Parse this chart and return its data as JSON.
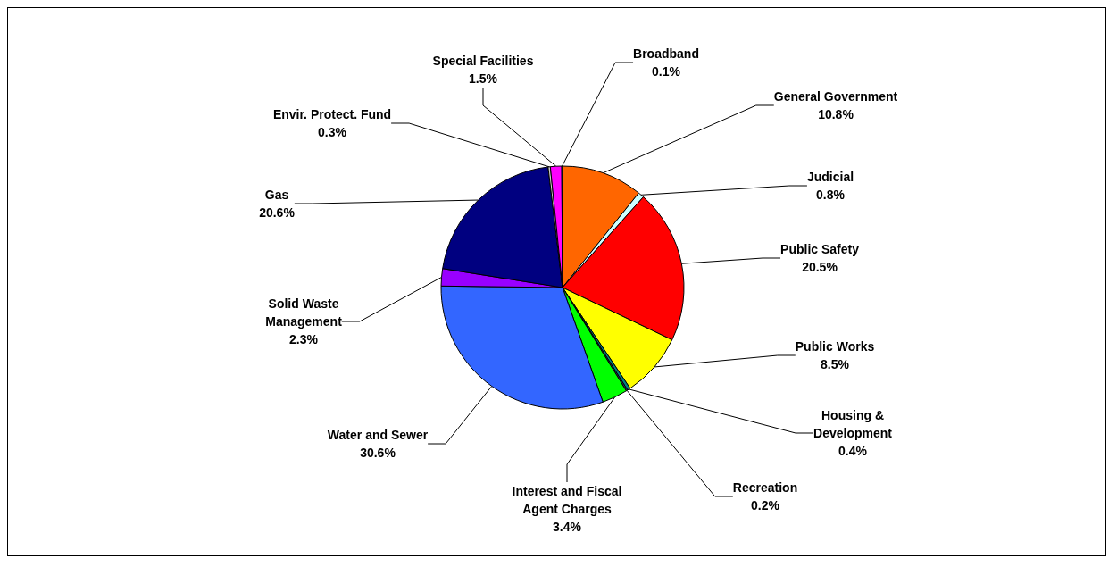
{
  "chart_data": {
    "type": "pie",
    "categories": [
      "General Government",
      "Judicial",
      "Public Safety",
      "Public Works",
      "Housing & Development",
      "Recreation",
      "Interest and Fiscal Agent Charges",
      "Water and Sewer",
      "Solid Waste Management",
      "Gas",
      "Envir. Protect. Fund",
      "Special Facilities",
      "Broadband"
    ],
    "values": [
      10.8,
      0.8,
      20.5,
      8.5,
      0.4,
      0.2,
      3.4,
      30.6,
      2.3,
      20.6,
      0.3,
      1.5,
      0.1
    ],
    "value_labels": [
      "10.8%",
      "0.8%",
      "20.5%",
      "8.5%",
      "0.4%",
      "0.2%",
      "3.4%",
      "30.6%",
      "2.3%",
      "20.6%",
      "0.3%",
      "1.5%",
      "0.1%"
    ],
    "colors": [
      "#ff6600",
      "#ccffff",
      "#ff0000",
      "#ffff00",
      "#008080",
      "#333366",
      "#00ff00",
      "#3366ff",
      "#9900ff",
      "#000080",
      "#cccccc",
      "#ff00ff",
      "#339966"
    ],
    "legend": false
  }
}
